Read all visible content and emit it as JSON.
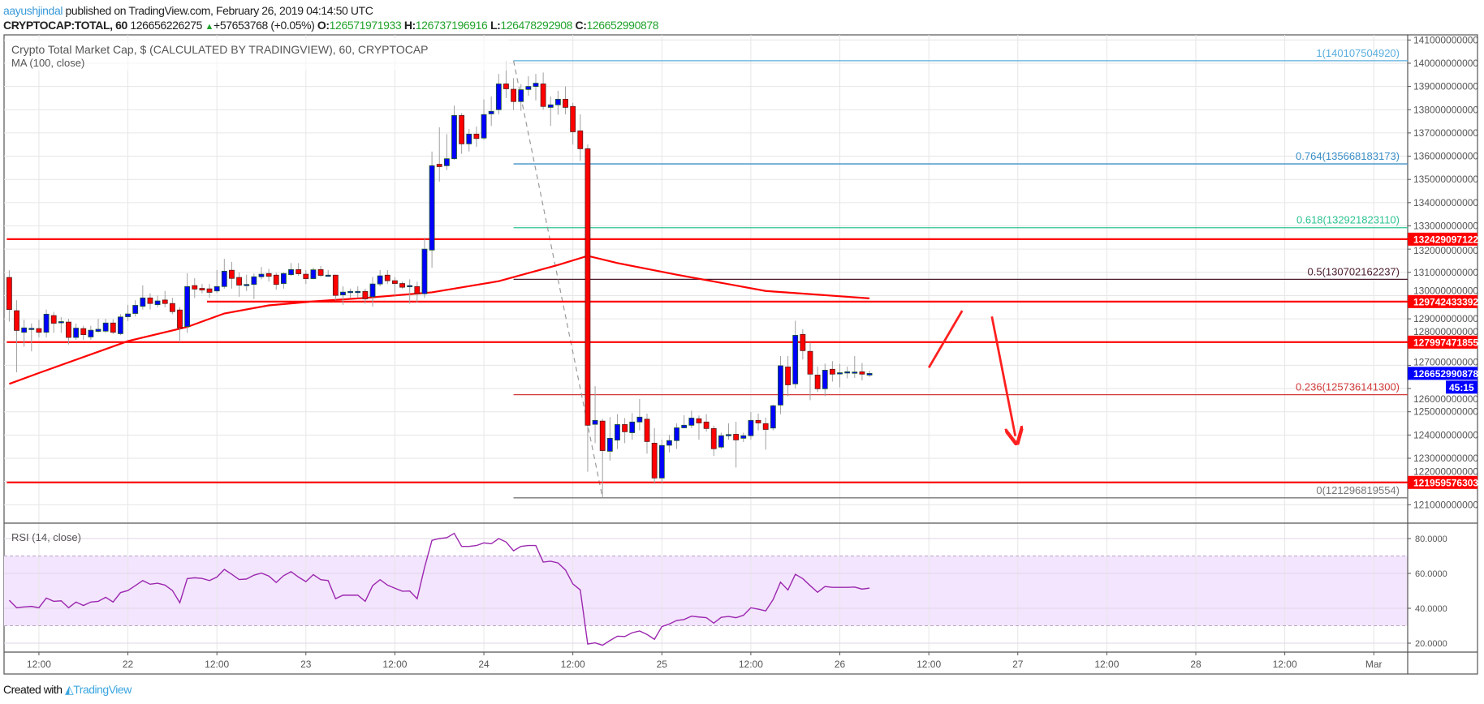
{
  "header": {
    "author": "aayushjindal",
    "published": "published on TradingView.com, February 26, 2019 04:14:50 UTC",
    "symbol": "CRYPTOCAP:TOTAL, 60",
    "last": "126656226275",
    "change": "+57653768 (+0.05%)",
    "o_label": "O:",
    "o": "126571971933",
    "h_label": "H:",
    "h": "126737196916",
    "l_label": "L:",
    "l": "126478292908",
    "c_label": "C:",
    "c": "126652990878",
    "up_icon": "triangle-up-icon"
  },
  "footer": {
    "created_with": "Created with",
    "brand": "TradingView",
    "logo_icon": "tradingview-logo-icon"
  },
  "colors": {
    "up": "#0000ff",
    "down": "#ff0000",
    "ma": "#ff0000",
    "rsi": "#9c27b0",
    "rsi_band": "#f3e5fd",
    "level": "#ff0000",
    "current": "#0000ff"
  },
  "chart_data": {
    "type": "candlestick",
    "title": "Crypto Total Market Cap, $ (CALCULATED BY TRADINGVIEW), 60, CRYPTOCAP",
    "indicator_label": "MA (100, close)",
    "unit": "billion USD",
    "first_candle": "2019-02-21 08:00",
    "interval_minutes": 60,
    "ylim": [
      120.4,
      141.3
    ],
    "y_ticks": [
      "141000000000",
      "140000000000",
      "139000000000",
      "138000000000",
      "137000000000",
      "136000000000",
      "135000000000",
      "134000000000",
      "133000000000",
      "132000000000",
      "131000000000",
      "130000000000",
      "129000000000",
      "128000000000",
      "127000000000",
      "126000000000",
      "125000000000",
      "124000000000",
      "123000000000",
      "122000000000",
      "121000000000"
    ],
    "x_ticks": [
      "12:00",
      "22",
      "12:00",
      "23",
      "12:00",
      "24",
      "12:00",
      "25",
      "12:00",
      "26",
      "12:00",
      "27",
      "12:00",
      "28",
      "12:00",
      "Mar"
    ],
    "grid": true,
    "candles_ohlc": [
      [
        130.78,
        131.09,
        128.88,
        129.4
      ],
      [
        129.35,
        129.8,
        126.7,
        128.5
      ],
      [
        128.42,
        128.96,
        127.8,
        128.61
      ],
      [
        128.59,
        128.8,
        127.6,
        128.59
      ],
      [
        128.58,
        128.96,
        128.2,
        128.42
      ],
      [
        128.42,
        129.4,
        128.2,
        129.2
      ],
      [
        129.14,
        129.3,
        128.4,
        128.81
      ],
      [
        128.88,
        129.07,
        128.4,
        128.88
      ],
      [
        128.86,
        129.0,
        127.9,
        128.2
      ],
      [
        128.2,
        128.8,
        128.1,
        128.6
      ],
      [
        128.58,
        128.7,
        128.1,
        128.32
      ],
      [
        128.22,
        128.7,
        128.1,
        128.51
      ],
      [
        128.46,
        129.0,
        128.4,
        128.55
      ],
      [
        128.47,
        129.0,
        128.4,
        128.82
      ],
      [
        128.82,
        128.98,
        128.35,
        128.42
      ],
      [
        128.36,
        129.2,
        128.3,
        129.08
      ],
      [
        129.09,
        129.6,
        128.9,
        129.21
      ],
      [
        129.23,
        129.8,
        129.1,
        129.58
      ],
      [
        129.54,
        130.44,
        129.4,
        129.9
      ],
      [
        129.9,
        130.1,
        129.4,
        129.66
      ],
      [
        129.61,
        130.0,
        129.5,
        129.77
      ],
      [
        129.81,
        130.2,
        129.5,
        129.66
      ],
      [
        129.66,
        129.9,
        129.2,
        129.31
      ],
      [
        129.38,
        129.5,
        128.0,
        128.61
      ],
      [
        128.67,
        130.96,
        128.4,
        130.39
      ],
      [
        130.43,
        130.75,
        129.9,
        130.28
      ],
      [
        130.31,
        130.5,
        130.1,
        130.24
      ],
      [
        130.29,
        130.5,
        129.9,
        130.14
      ],
      [
        130.2,
        131.1,
        130.1,
        130.39
      ],
      [
        130.39,
        131.58,
        130.3,
        131.05
      ],
      [
        131.09,
        131.45,
        130.3,
        130.74
      ],
      [
        130.78,
        131.0,
        129.95,
        130.45
      ],
      [
        130.48,
        130.9,
        130.2,
        130.48
      ],
      [
        130.48,
        130.95,
        129.85,
        130.81
      ],
      [
        130.81,
        131.23,
        130.7,
        130.92
      ],
      [
        130.95,
        131.15,
        130.6,
        130.83
      ],
      [
        130.88,
        130.98,
        130.25,
        130.48
      ],
      [
        130.52,
        131.0,
        130.3,
        130.95
      ],
      [
        130.9,
        131.4,
        130.85,
        131.12
      ],
      [
        131.12,
        131.4,
        130.85,
        130.94
      ],
      [
        130.92,
        131.1,
        130.5,
        130.73
      ],
      [
        130.73,
        131.2,
        130.7,
        131.11
      ],
      [
        131.12,
        131.27,
        130.8,
        130.87
      ],
      [
        130.88,
        131.1,
        130.8,
        130.88
      ],
      [
        130.88,
        130.9,
        129.8,
        130.01
      ],
      [
        130.03,
        130.4,
        129.6,
        130.15
      ],
      [
        130.18,
        130.3,
        129.9,
        130.18
      ],
      [
        130.18,
        130.4,
        129.9,
        130.18
      ],
      [
        130.18,
        130.3,
        129.65,
        129.86
      ],
      [
        129.95,
        130.8,
        129.53,
        130.5
      ],
      [
        130.5,
        131.1,
        130.4,
        130.85
      ],
      [
        130.88,
        131.1,
        130.5,
        130.64
      ],
      [
        130.64,
        130.8,
        130.0,
        130.52
      ],
      [
        130.52,
        130.6,
        130.3,
        130.36
      ],
      [
        130.43,
        130.7,
        129.65,
        130.43
      ],
      [
        130.39,
        130.6,
        129.7,
        130.08
      ],
      [
        130.08,
        132.5,
        129.9,
        132.0
      ],
      [
        131.96,
        136.2,
        131.2,
        135.59
      ],
      [
        135.65,
        137.24,
        134.9,
        135.55
      ],
      [
        135.59,
        136.95,
        135.4,
        135.89
      ],
      [
        135.89,
        138.18,
        135.85,
        137.75
      ],
      [
        137.75,
        137.85,
        136.1,
        136.53
      ],
      [
        136.53,
        137.17,
        136.2,
        136.95
      ],
      [
        136.95,
        137.27,
        136.4,
        136.76
      ],
      [
        136.78,
        138.44,
        136.7,
        137.79
      ],
      [
        137.82,
        138.57,
        137.3,
        137.93
      ],
      [
        138.0,
        139.54,
        137.8,
        139.11
      ],
      [
        139.11,
        140.1,
        138.5,
        138.9
      ],
      [
        138.88,
        139.36,
        137.98,
        138.35
      ],
      [
        138.35,
        139.1,
        137.95,
        138.86
      ],
      [
        138.87,
        139.44,
        138.6,
        139.0
      ],
      [
        139.0,
        139.54,
        138.4,
        139.14
      ],
      [
        139.11,
        139.6,
        138.0,
        138.14
      ],
      [
        138.1,
        138.57,
        137.3,
        138.21
      ],
      [
        138.21,
        138.81,
        137.78,
        138.45
      ],
      [
        138.45,
        139.0,
        137.8,
        138.1
      ],
      [
        138.14,
        138.3,
        136.5,
        137.05
      ],
      [
        137.09,
        137.8,
        135.8,
        136.32
      ],
      [
        136.32,
        136.5,
        122.42,
        124.42
      ],
      [
        124.46,
        126.1,
        123.65,
        124.63
      ],
      [
        124.6,
        124.7,
        121.3,
        123.33
      ],
      [
        123.3,
        124.77,
        122.9,
        123.86
      ],
      [
        123.78,
        124.9,
        123.4,
        124.45
      ],
      [
        124.45,
        124.73,
        123.65,
        124.14
      ],
      [
        124.1,
        124.94,
        123.8,
        124.56
      ],
      [
        124.56,
        125.55,
        124.2,
        124.77
      ],
      [
        124.68,
        124.92,
        123.2,
        123.72
      ],
      [
        123.65,
        124.3,
        121.9,
        122.15
      ],
      [
        122.15,
        123.8,
        121.9,
        123.55
      ],
      [
        123.56,
        124.0,
        123.25,
        123.76
      ],
      [
        123.76,
        124.5,
        123.4,
        124.31
      ],
      [
        124.31,
        124.85,
        124.3,
        124.42
      ],
      [
        124.42,
        125.05,
        124.3,
        124.73
      ],
      [
        124.7,
        124.84,
        123.8,
        124.52
      ],
      [
        124.56,
        124.9,
        124.15,
        124.28
      ],
      [
        124.28,
        124.4,
        123.1,
        123.41
      ],
      [
        123.48,
        124.1,
        123.4,
        123.97
      ],
      [
        124.02,
        124.5,
        123.8,
        124.02
      ],
      [
        124.03,
        124.57,
        122.6,
        123.79
      ],
      [
        123.86,
        124.1,
        123.7,
        123.97
      ],
      [
        123.97,
        124.99,
        123.8,
        124.63
      ],
      [
        124.63,
        124.92,
        124.2,
        124.52
      ],
      [
        124.49,
        124.75,
        123.37,
        124.24
      ],
      [
        124.3,
        125.3,
        124.2,
        125.26
      ],
      [
        125.29,
        127.4,
        124.9,
        126.98
      ],
      [
        126.93,
        127.4,
        125.66,
        126.16
      ],
      [
        126.2,
        128.92,
        126.0,
        128.29
      ],
      [
        128.33,
        128.55,
        127.25,
        127.63
      ],
      [
        127.6,
        127.98,
        125.5,
        126.62
      ],
      [
        126.58,
        126.95,
        125.85,
        125.99
      ],
      [
        125.99,
        127.07,
        125.67,
        126.79
      ],
      [
        126.83,
        127.18,
        126.3,
        126.62
      ],
      [
        126.68,
        127.06,
        126.05,
        126.68
      ],
      [
        126.68,
        126.94,
        126.44,
        126.72
      ],
      [
        126.71,
        127.4,
        126.46,
        126.71
      ],
      [
        126.72,
        127.1,
        126.35,
        126.62
      ],
      [
        126.58,
        126.77,
        126.5,
        126.65
      ]
    ],
    "ma100": [
      {
        "t": "21 08:00",
        "v": 126.2
      },
      {
        "t": "21 12:00",
        "v": 126.67
      },
      {
        "t": "22 00:00",
        "v": 128.04
      },
      {
        "t": "22 08:00",
        "v": 128.65
      },
      {
        "t": "22 13:00",
        "v": 129.23
      },
      {
        "t": "22 19:00",
        "v": 129.58
      },
      {
        "t": "23 01:00",
        "v": 129.75
      },
      {
        "t": "23 08:00",
        "v": 129.9
      },
      {
        "t": "23 17:00",
        "v": 130.14
      },
      {
        "t": "24 02:00",
        "v": 130.62
      },
      {
        "t": "24 10:00",
        "v": 131.32
      },
      {
        "t": "24 14:00",
        "v": 131.71
      },
      {
        "t": "24 18:00",
        "v": 131.4
      },
      {
        "t": "25 02:00",
        "v": 130.9
      },
      {
        "t": "25 14:00",
        "v": 130.2
      },
      {
        "t": "26 04:00",
        "v": 129.88
      }
    ],
    "horizontal_levels": [
      {
        "value": 132.429,
        "label": "132429097122",
        "from": "21 08:00"
      },
      {
        "value": 129.742,
        "label": "129742433392",
        "from": "22 11:00"
      },
      {
        "value": 127.997,
        "label": "127997471855",
        "from": "21 08:00"
      },
      {
        "value": 121.96,
        "label": "121959576303",
        "from": "21 08:00"
      }
    ],
    "current_price": {
      "value": 126.653,
      "label": "126652990878",
      "countdown": "45:15"
    },
    "fibonacci": {
      "from": "24 04:00",
      "levels": [
        {
          "value": 140.1075,
          "label": "1(140107504920)",
          "color": "#5aaede"
        },
        {
          "value": 135.668,
          "label": "0.764(135668183173)",
          "color": "#3a8ec7"
        },
        {
          "value": 132.922,
          "label": "0.618(132921823110)",
          "color": "#2ec48f"
        },
        {
          "value": 130.702,
          "label": "0.5(130702162237)",
          "color": "#4a1a2c"
        },
        {
          "value": 125.736,
          "label": "0.236(125736141300)",
          "color": "#d23a3a"
        },
        {
          "value": 121.297,
          "label": "0(121296819554)",
          "color": "#777777"
        }
      ],
      "trend_from": {
        "t": "24 04:00",
        "v": 140.1075
      },
      "trend_to": {
        "t": "24 16:00",
        "v": 121.297
      }
    },
    "annotations": [
      {
        "type": "line",
        "from": {
          "t": "26 12:00",
          "v": 126.9
        },
        "to": {
          "t": "26 16:30",
          "v": 129.35
        }
      },
      {
        "type": "arrow",
        "from": {
          "t": "26 20:30",
          "v": 129.1
        },
        "to": {
          "t": "26 23:40",
          "v": 123.95
        }
      }
    ],
    "rsi": {
      "label": "RSI (14, close)",
      "ylim": [
        14,
        88
      ],
      "ticks": [
        "80.0000",
        "60.0000",
        "40.0000",
        "20.0000"
      ],
      "band": [
        30,
        70
      ],
      "values": [
        44.6,
        40.3,
        40.8,
        41.1,
        40.3,
        45.9,
        44,
        44.3,
        40.3,
        43.6,
        41.6,
        43.6,
        44,
        46.3,
        43.6,
        49,
        50.2,
        53,
        55.9,
        53.8,
        54.4,
        53.3,
        50.2,
        43.2,
        57,
        57.5,
        57.1,
        55.9,
        57.9,
        62.3,
        59.5,
        56.5,
        56.8,
        59,
        60.2,
        58.5,
        54.8,
        58.7,
        61,
        57.9,
        55.3,
        59.3,
        56.4,
        55.9,
        45.5,
        47.5,
        47.5,
        47.5,
        44,
        53,
        56.4,
        53.3,
        51.5,
        49.8,
        49.9,
        45.5,
        63.4,
        79,
        80,
        80.5,
        83,
        75.5,
        75.5,
        76,
        77.5,
        77,
        80,
        78,
        73,
        75.5,
        76,
        76,
        66.5,
        67,
        66,
        62,
        54,
        50.5,
        19.5,
        20.2,
        18.8,
        21.5,
        24,
        23.8,
        26,
        27,
        25,
        22.2,
        29.5,
        31,
        33,
        33.6,
        35.5,
        35,
        34.6,
        31.5,
        34.8,
        35.3,
        34.6,
        36,
        40.3,
        39.5,
        38.5,
        45,
        55,
        50.5,
        59.5,
        57,
        53,
        49.2,
        52.5,
        52,
        52,
        52,
        52.2,
        51,
        51.6
      ]
    }
  }
}
